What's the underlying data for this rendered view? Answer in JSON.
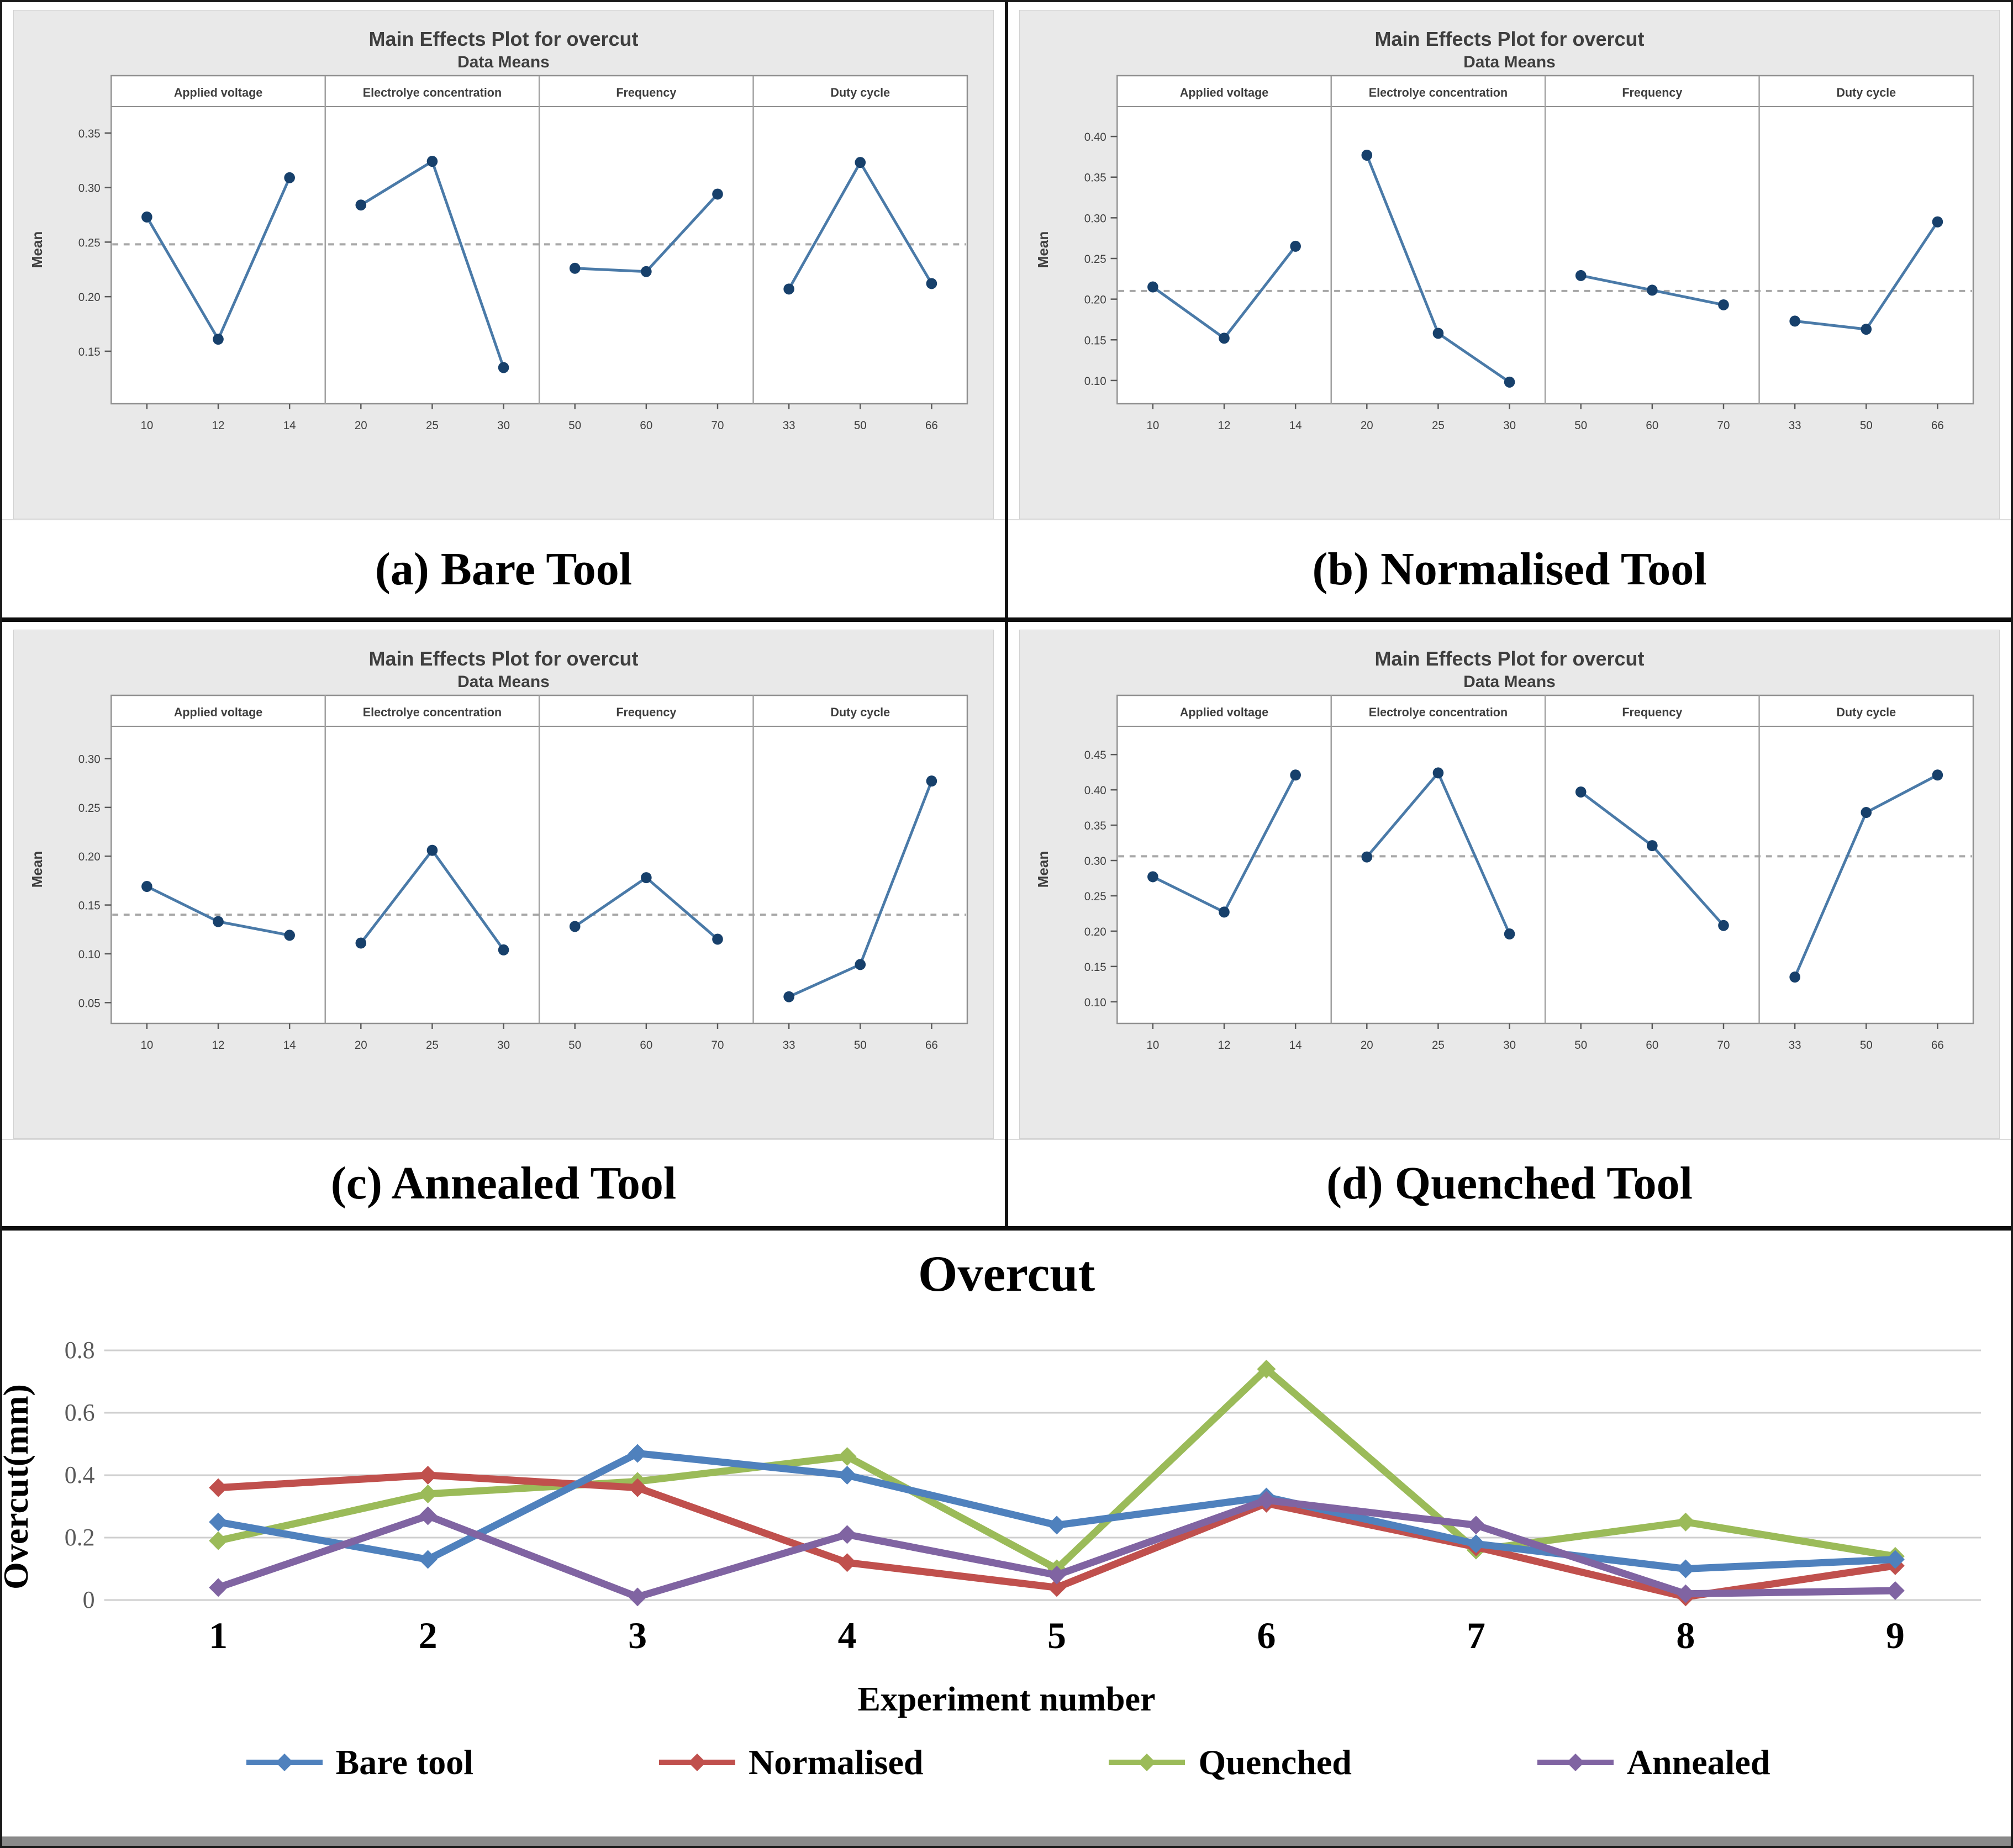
{
  "palette": {
    "minitab_background": "#e9e9e9",
    "minitab_frame": "#909090",
    "minitab_point": "#17406b",
    "minitab_line": "#4a7aa8",
    "minitab_mean_dash": "#a8a8a8",
    "gridline": "#cfcfcf",
    "series_blue": "#4f81bd",
    "series_red": "#c0504d",
    "series_green": "#9bbb59",
    "series_purple": "#8064a2"
  },
  "chart_data": [
    {
      "id": "a",
      "type": "line",
      "kind": "main-effects",
      "title": "Main Effects Plot for overcut",
      "subtitle": "Data Means",
      "ylabel": "Mean",
      "caption": "(a) Bare Tool",
      "factors": [
        "Applied voltage",
        "Electrolye concentration",
        "Frequency",
        "Duty cycle"
      ],
      "x_labels": [
        [
          "10",
          "12",
          "14"
        ],
        [
          "20",
          "25",
          "30"
        ],
        [
          "50",
          "60",
          "70"
        ],
        [
          "33",
          "50",
          "66"
        ]
      ],
      "values": [
        [
          0.273,
          0.161,
          0.309
        ],
        [
          0.284,
          0.324,
          0.135
        ],
        [
          0.226,
          0.223,
          0.294
        ],
        [
          0.207,
          0.323,
          0.212
        ]
      ],
      "mean_line": 0.248,
      "yticks": [
        "0.15",
        "0.20",
        "0.25",
        "0.30",
        "0.35"
      ],
      "ylim": [
        0.112,
        0.358
      ],
      "legend": "none",
      "grid": false
    },
    {
      "id": "b",
      "type": "line",
      "kind": "main-effects",
      "title": "Main Effects Plot for overcut",
      "subtitle": "Data Means",
      "ylabel": "Mean",
      "caption": "(b) Normalised Tool",
      "factors": [
        "Applied voltage",
        "Electrolye concentration",
        "Frequency",
        "Duty cycle"
      ],
      "x_labels": [
        [
          "10",
          "12",
          "14"
        ],
        [
          "20",
          "25",
          "30"
        ],
        [
          "50",
          "60",
          "70"
        ],
        [
          "33",
          "50",
          "66"
        ]
      ],
      "values": [
        [
          0.215,
          0.152,
          0.265
        ],
        [
          0.377,
          0.158,
          0.098
        ],
        [
          0.229,
          0.211,
          0.193
        ],
        [
          0.173,
          0.163,
          0.295
        ]
      ],
      "mean_line": 0.21,
      "yticks": [
        "0.10",
        "0.15",
        "0.20",
        "0.25",
        "0.30",
        "0.35",
        "0.40"
      ],
      "ylim": [
        0.085,
        0.415
      ],
      "legend": "none",
      "grid": false
    },
    {
      "id": "c",
      "type": "line",
      "kind": "main-effects",
      "title": "Main Effects Plot for overcut",
      "subtitle": "Data Means",
      "ylabel": "Mean",
      "caption": "(c) Annealed Tool",
      "factors": [
        "Applied voltage",
        "Electrolye concentration",
        "Frequency",
        "Duty cycle"
      ],
      "x_labels": [
        [
          "10",
          "12",
          "14"
        ],
        [
          "20",
          "25",
          "30"
        ],
        [
          "50",
          "60",
          "70"
        ],
        [
          "33",
          "50",
          "66"
        ]
      ],
      "values": [
        [
          0.169,
          0.133,
          0.119
        ],
        [
          0.111,
          0.206,
          0.104
        ],
        [
          0.128,
          0.178,
          0.115
        ],
        [
          0.056,
          0.089,
          0.277
        ]
      ],
      "mean_line": 0.14,
      "yticks": [
        "0.05",
        "0.10",
        "0.15",
        "0.20",
        "0.25",
        "0.30"
      ],
      "ylim": [
        0.04,
        0.315
      ],
      "legend": "none",
      "grid": false
    },
    {
      "id": "d",
      "type": "line",
      "kind": "main-effects",
      "title": "Main Effects Plot for overcut",
      "subtitle": "Data Means",
      "ylabel": "Mean",
      "caption": "(d) Quenched Tool",
      "factors": [
        "Applied voltage",
        "Electrolye concentration",
        "Frequency",
        "Duty cycle"
      ],
      "x_labels": [
        [
          "10",
          "12",
          "14"
        ],
        [
          "20",
          "25",
          "30"
        ],
        [
          "50",
          "60",
          "70"
        ],
        [
          "33",
          "50",
          "66"
        ]
      ],
      "values": [
        [
          0.277,
          0.227,
          0.421
        ],
        [
          0.305,
          0.424,
          0.196
        ],
        [
          0.397,
          0.321,
          0.208
        ],
        [
          0.135,
          0.368,
          0.421
        ]
      ],
      "mean_line": 0.306,
      "yticks": [
        "0.10",
        "0.15",
        "0.20",
        "0.25",
        "0.30",
        "0.35",
        "0.40",
        "0.45"
      ],
      "ylim": [
        0.085,
        0.465
      ],
      "legend": "none",
      "grid": false
    },
    {
      "id": "overcut",
      "type": "line",
      "title": "Overcut",
      "xlabel": "Experiment number",
      "ylabel": "Overcut(mm)",
      "x": [
        1,
        2,
        3,
        4,
        5,
        6,
        7,
        8,
        9
      ],
      "x_labels": [
        "1",
        "2",
        "3",
        "4",
        "5",
        "6",
        "7",
        "8",
        "9"
      ],
      "yticks": [
        "0",
        "0.2",
        "0.4",
        "0.6",
        "0.8"
      ],
      "ylim": [
        0,
        0.9
      ],
      "grid": true,
      "legend_position": "bottom",
      "series": [
        {
          "name": "Bare tool",
          "color": "#4f81bd",
          "values": [
            0.25,
            0.13,
            0.47,
            0.4,
            0.24,
            0.33,
            0.18,
            0.1,
            0.13
          ]
        },
        {
          "name": "Normalised",
          "color": "#c0504d",
          "values": [
            0.36,
            0.4,
            0.36,
            0.12,
            0.04,
            0.31,
            0.17,
            0.01,
            0.11
          ]
        },
        {
          "name": "Quenched",
          "color": "#9bbb59",
          "values": [
            0.19,
            0.34,
            0.38,
            0.46,
            0.1,
            0.74,
            0.16,
            0.25,
            0.14
          ]
        },
        {
          "name": "Annealed",
          "color": "#8064a2",
          "values": [
            0.04,
            0.27,
            0.01,
            0.21,
            0.08,
            0.32,
            0.24,
            0.02,
            0.03
          ]
        }
      ]
    }
  ]
}
